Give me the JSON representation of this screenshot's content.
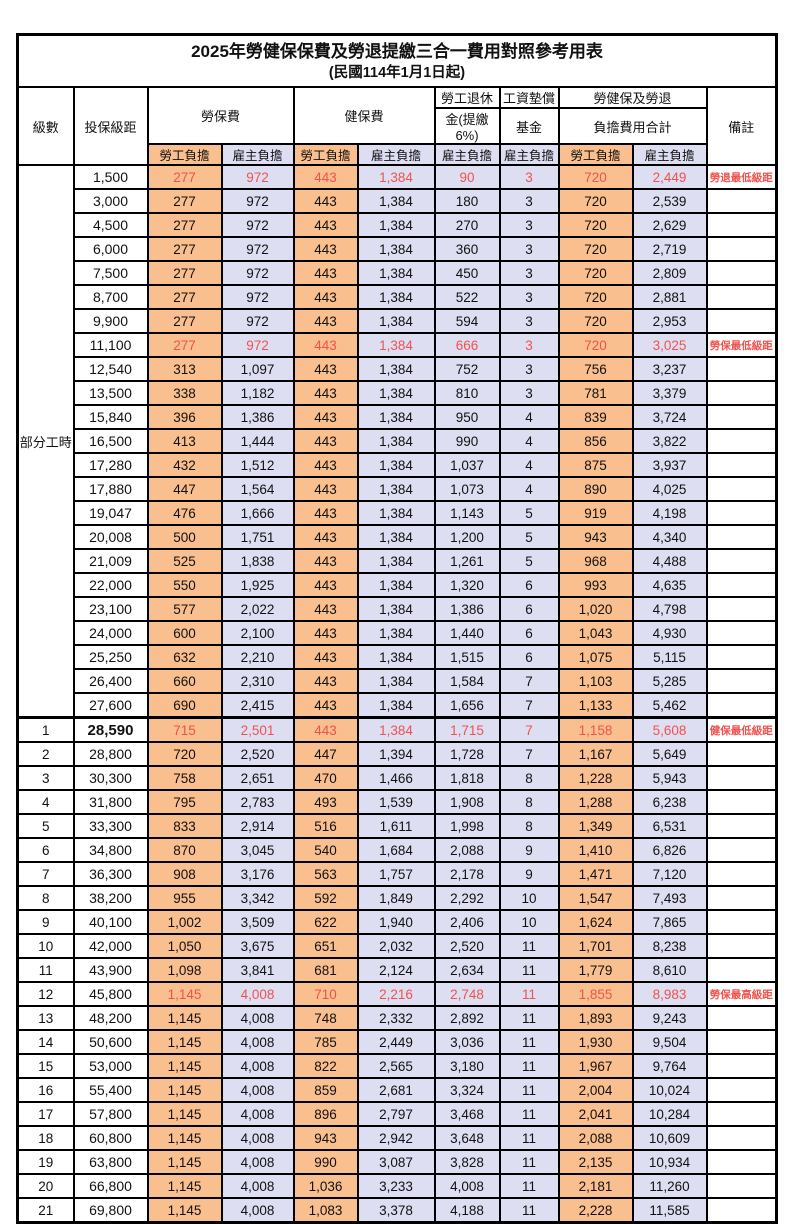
{
  "title": "2025年勞健保保費及勞退提繳三合一費用對照參考用表",
  "subtitle": "(民國114年1月1日起)",
  "header": {
    "level": "級數",
    "salary": "投保級距",
    "labor_group": "勞保費",
    "health_group": "健保費",
    "pension_line1": "勞工退休",
    "pension_line2": "金(提繳6%)",
    "fund_line1": "工資墊償",
    "fund_line2": "基金",
    "total_line1": "勞健保及勞退",
    "total_line2": "負擔費用合計",
    "employee": "勞工負擔",
    "employer": "雇主負擔",
    "remark": "備註"
  },
  "part_time_label": "部分工時",
  "part_time_rowspan": 23,
  "colors": {
    "employee_bg": "#FABF8F",
    "employer_bg": "#DEDEF3",
    "highlight_text": "#F0524E",
    "border": "#000000"
  },
  "rows": [
    {
      "level": null,
      "salary": "1,500",
      "values": [
        "277",
        "972",
        "443",
        "1,384",
        "90",
        "3",
        "720",
        "2,449"
      ],
      "remark": "勞退最低級距",
      "hl": true
    },
    {
      "level": null,
      "salary": "3,000",
      "values": [
        "277",
        "972",
        "443",
        "1,384",
        "180",
        "3",
        "720",
        "2,539"
      ],
      "remark": ""
    },
    {
      "level": null,
      "salary": "4,500",
      "values": [
        "277",
        "972",
        "443",
        "1,384",
        "270",
        "3",
        "720",
        "2,629"
      ],
      "remark": ""
    },
    {
      "level": null,
      "salary": "6,000",
      "values": [
        "277",
        "972",
        "443",
        "1,384",
        "360",
        "3",
        "720",
        "2,719"
      ],
      "remark": ""
    },
    {
      "level": null,
      "salary": "7,500",
      "values": [
        "277",
        "972",
        "443",
        "1,384",
        "450",
        "3",
        "720",
        "2,809"
      ],
      "remark": ""
    },
    {
      "level": null,
      "salary": "8,700",
      "values": [
        "277",
        "972",
        "443",
        "1,384",
        "522",
        "3",
        "720",
        "2,881"
      ],
      "remark": ""
    },
    {
      "level": null,
      "salary": "9,900",
      "values": [
        "277",
        "972",
        "443",
        "1,384",
        "594",
        "3",
        "720",
        "2,953"
      ],
      "remark": ""
    },
    {
      "level": null,
      "salary": "11,100",
      "values": [
        "277",
        "972",
        "443",
        "1,384",
        "666",
        "3",
        "720",
        "3,025"
      ],
      "remark": "勞保最低級距",
      "hl": true
    },
    {
      "level": null,
      "salary": "12,540",
      "values": [
        "313",
        "1,097",
        "443",
        "1,384",
        "752",
        "3",
        "756",
        "3,237"
      ],
      "remark": ""
    },
    {
      "level": null,
      "salary": "13,500",
      "values": [
        "338",
        "1,182",
        "443",
        "1,384",
        "810",
        "3",
        "781",
        "3,379"
      ],
      "remark": ""
    },
    {
      "level": null,
      "salary": "15,840",
      "values": [
        "396",
        "1,386",
        "443",
        "1,384",
        "950",
        "4",
        "839",
        "3,724"
      ],
      "remark": ""
    },
    {
      "level": null,
      "salary": "16,500",
      "values": [
        "413",
        "1,444",
        "443",
        "1,384",
        "990",
        "4",
        "856",
        "3,822"
      ],
      "remark": ""
    },
    {
      "level": null,
      "salary": "17,280",
      "values": [
        "432",
        "1,512",
        "443",
        "1,384",
        "1,037",
        "4",
        "875",
        "3,937"
      ],
      "remark": ""
    },
    {
      "level": null,
      "salary": "17,880",
      "values": [
        "447",
        "1,564",
        "443",
        "1,384",
        "1,073",
        "4",
        "890",
        "4,025"
      ],
      "remark": ""
    },
    {
      "level": null,
      "salary": "19,047",
      "values": [
        "476",
        "1,666",
        "443",
        "1,384",
        "1,143",
        "5",
        "919",
        "4,198"
      ],
      "remark": ""
    },
    {
      "level": null,
      "salary": "20,008",
      "values": [
        "500",
        "1,751",
        "443",
        "1,384",
        "1,200",
        "5",
        "943",
        "4,340"
      ],
      "remark": ""
    },
    {
      "level": null,
      "salary": "21,009",
      "values": [
        "525",
        "1,838",
        "443",
        "1,384",
        "1,261",
        "5",
        "968",
        "4,488"
      ],
      "remark": ""
    },
    {
      "level": null,
      "salary": "22,000",
      "values": [
        "550",
        "1,925",
        "443",
        "1,384",
        "1,320",
        "6",
        "993",
        "4,635"
      ],
      "remark": ""
    },
    {
      "level": null,
      "salary": "23,100",
      "values": [
        "577",
        "2,022",
        "443",
        "1,384",
        "1,386",
        "6",
        "1,020",
        "4,798"
      ],
      "remark": ""
    },
    {
      "level": null,
      "salary": "24,000",
      "values": [
        "600",
        "2,100",
        "443",
        "1,384",
        "1,440",
        "6",
        "1,043",
        "4,930"
      ],
      "remark": ""
    },
    {
      "level": null,
      "salary": "25,250",
      "values": [
        "632",
        "2,210",
        "443",
        "1,384",
        "1,515",
        "6",
        "1,075",
        "5,115"
      ],
      "remark": ""
    },
    {
      "level": null,
      "salary": "26,400",
      "values": [
        "660",
        "2,310",
        "443",
        "1,384",
        "1,584",
        "7",
        "1,103",
        "5,285"
      ],
      "remark": ""
    },
    {
      "level": null,
      "salary": "27,600",
      "values": [
        "690",
        "2,415",
        "443",
        "1,384",
        "1,656",
        "7",
        "1,133",
        "5,462"
      ],
      "remark": ""
    },
    {
      "level": "1",
      "salary": "28,590",
      "values": [
        "715",
        "2,501",
        "443",
        "1,384",
        "1,715",
        "7",
        "1,158",
        "5,608"
      ],
      "remark": "健保最低級距",
      "hl": true,
      "bold": true,
      "sec": true
    },
    {
      "level": "2",
      "salary": "28,800",
      "values": [
        "720",
        "2,520",
        "447",
        "1,394",
        "1,728",
        "7",
        "1,167",
        "5,649"
      ],
      "remark": ""
    },
    {
      "level": "3",
      "salary": "30,300",
      "values": [
        "758",
        "2,651",
        "470",
        "1,466",
        "1,818",
        "8",
        "1,228",
        "5,943"
      ],
      "remark": ""
    },
    {
      "level": "4",
      "salary": "31,800",
      "values": [
        "795",
        "2,783",
        "493",
        "1,539",
        "1,908",
        "8",
        "1,288",
        "6,238"
      ],
      "remark": ""
    },
    {
      "level": "5",
      "salary": "33,300",
      "values": [
        "833",
        "2,914",
        "516",
        "1,611",
        "1,998",
        "8",
        "1,349",
        "6,531"
      ],
      "remark": ""
    },
    {
      "level": "6",
      "salary": "34,800",
      "values": [
        "870",
        "3,045",
        "540",
        "1,684",
        "2,088",
        "9",
        "1,410",
        "6,826"
      ],
      "remark": ""
    },
    {
      "level": "7",
      "salary": "36,300",
      "values": [
        "908",
        "3,176",
        "563",
        "1,757",
        "2,178",
        "9",
        "1,471",
        "7,120"
      ],
      "remark": ""
    },
    {
      "level": "8",
      "salary": "38,200",
      "values": [
        "955",
        "3,342",
        "592",
        "1,849",
        "2,292",
        "10",
        "1,547",
        "7,493"
      ],
      "remark": ""
    },
    {
      "level": "9",
      "salary": "40,100",
      "values": [
        "1,002",
        "3,509",
        "622",
        "1,940",
        "2,406",
        "10",
        "1,624",
        "7,865"
      ],
      "remark": ""
    },
    {
      "level": "10",
      "salary": "42,000",
      "values": [
        "1,050",
        "3,675",
        "651",
        "2,032",
        "2,520",
        "11",
        "1,701",
        "8,238"
      ],
      "remark": ""
    },
    {
      "level": "11",
      "salary": "43,900",
      "values": [
        "1,098",
        "3,841",
        "681",
        "2,124",
        "2,634",
        "11",
        "1,779",
        "8,610"
      ],
      "remark": ""
    },
    {
      "level": "12",
      "salary": "45,800",
      "values": [
        "1,145",
        "4,008",
        "710",
        "2,216",
        "2,748",
        "11",
        "1,855",
        "8,983"
      ],
      "remark": "勞保最高級距",
      "hl": true
    },
    {
      "level": "13",
      "salary": "48,200",
      "values": [
        "1,145",
        "4,008",
        "748",
        "2,332",
        "2,892",
        "11",
        "1,893",
        "9,243"
      ],
      "remark": ""
    },
    {
      "level": "14",
      "salary": "50,600",
      "values": [
        "1,145",
        "4,008",
        "785",
        "2,449",
        "3,036",
        "11",
        "1,930",
        "9,504"
      ],
      "remark": ""
    },
    {
      "level": "15",
      "salary": "53,000",
      "values": [
        "1,145",
        "4,008",
        "822",
        "2,565",
        "3,180",
        "11",
        "1,967",
        "9,764"
      ],
      "remark": ""
    },
    {
      "level": "16",
      "salary": "55,400",
      "values": [
        "1,145",
        "4,008",
        "859",
        "2,681",
        "3,324",
        "11",
        "2,004",
        "10,024"
      ],
      "remark": ""
    },
    {
      "level": "17",
      "salary": "57,800",
      "values": [
        "1,145",
        "4,008",
        "896",
        "2,797",
        "3,468",
        "11",
        "2,041",
        "10,284"
      ],
      "remark": ""
    },
    {
      "level": "18",
      "salary": "60,800",
      "values": [
        "1,145",
        "4,008",
        "943",
        "2,942",
        "3,648",
        "11",
        "2,088",
        "10,609"
      ],
      "remark": ""
    },
    {
      "level": "19",
      "salary": "63,800",
      "values": [
        "1,145",
        "4,008",
        "990",
        "3,087",
        "3,828",
        "11",
        "2,135",
        "10,934"
      ],
      "remark": ""
    },
    {
      "level": "20",
      "salary": "66,800",
      "values": [
        "1,145",
        "4,008",
        "1,036",
        "3,233",
        "4,008",
        "11",
        "2,181",
        "11,260"
      ],
      "remark": ""
    },
    {
      "level": "21",
      "salary": "69,800",
      "values": [
        "1,145",
        "4,008",
        "1,083",
        "3,378",
        "4,188",
        "11",
        "2,228",
        "11,585"
      ],
      "remark": ""
    }
  ]
}
